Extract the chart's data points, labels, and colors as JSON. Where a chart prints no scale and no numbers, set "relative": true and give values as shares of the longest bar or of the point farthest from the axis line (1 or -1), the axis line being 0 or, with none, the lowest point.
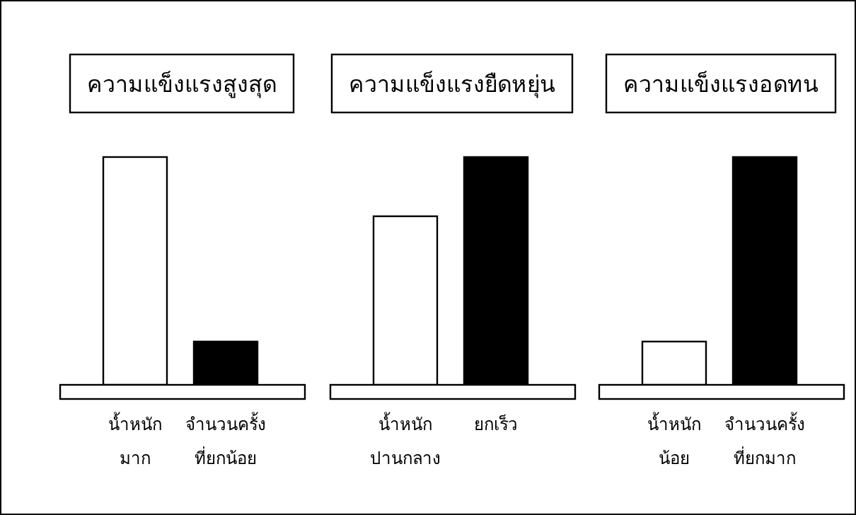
{
  "chart_data": [
    {
      "type": "bar",
      "title": "ความแข็งแรงสูงสุด",
      "categories": [
        "น้ำหนัก\nมาก",
        "จำนวนครั้ง\nที่ยกน้อย"
      ],
      "values": [
        1,
        0.19
      ],
      "colors": [
        "#ffffff",
        "#000000"
      ],
      "relative": true
    },
    {
      "type": "bar",
      "title": "ความแข็งแรงยืดหยุ่น",
      "categories": [
        "น้ำหนัก\nปานกลาง",
        "ยกเร็ว"
      ],
      "values": [
        0.74,
        1
      ],
      "colors": [
        "#ffffff",
        "#000000"
      ],
      "relative": true
    },
    {
      "type": "bar",
      "title": "ความแข็งแรงอดทน",
      "categories": [
        "น้ำหนัก\nน้อย",
        "จำนวนครั้ง\nที่ยกมาก"
      ],
      "values": [
        0.19,
        1
      ],
      "colors": [
        "#ffffff",
        "#000000"
      ],
      "relative": true
    }
  ]
}
